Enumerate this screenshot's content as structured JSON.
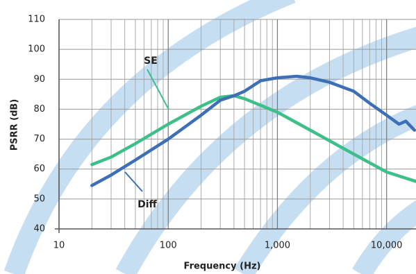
{
  "chart_data": {
    "type": "line",
    "xlabel": "Frequency (Hz)",
    "ylabel": "PSRR (dB)",
    "xscale": "log",
    "xlim": [
      10,
      20000
    ],
    "ylim": [
      40,
      110
    ],
    "xticks": [
      10,
      100,
      {
        "value": 1000,
        "label": "1,000"
      },
      {
        "value": 10000,
        "label": "10,000"
      }
    ],
    "yticks": [
      40,
      50,
      60,
      70,
      80,
      90,
      100,
      110
    ],
    "grid": true,
    "series": [
      {
        "name": "SE",
        "color": "#3dbf8a",
        "x": [
          20,
          30,
          50,
          100,
          200,
          300,
          400,
          500,
          1000,
          2000,
          5000,
          10000,
          20000
        ],
        "values": [
          61.5,
          64,
          68.5,
          75,
          81,
          84,
          84.5,
          83.5,
          79,
          73,
          65,
          59,
          55.5
        ]
      },
      {
        "name": "Diff",
        "color": "#3d6fb6",
        "x": [
          20,
          30,
          50,
          100,
          200,
          300,
          400,
          500,
          700,
          1000,
          1500,
          2000,
          3000,
          5000,
          7000,
          10000,
          13000,
          15000,
          18000
        ],
        "values": [
          54.5,
          58,
          63,
          70,
          78,
          83,
          84.5,
          86,
          89.5,
          90.5,
          91,
          90.5,
          89,
          86,
          82,
          78,
          75,
          76,
          73
        ]
      }
    ]
  }
}
